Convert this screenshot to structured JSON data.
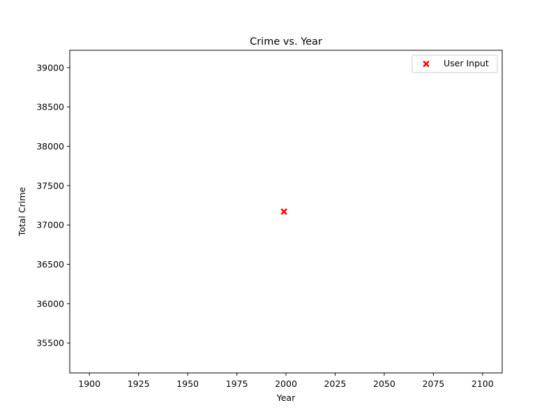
{
  "chart_data": {
    "type": "scatter",
    "title": "Crime vs. Year",
    "xlabel": "Year",
    "ylabel": "Total Crime",
    "xlim": [
      1890,
      2110
    ],
    "ylim": [
      35120,
      39220
    ],
    "xticks": [
      1900,
      1925,
      1950,
      1975,
      2000,
      2025,
      2050,
      2075,
      2100
    ],
    "xtick_labels": [
      "1900",
      "1925",
      "1950",
      "1975",
      "2000",
      "2025",
      "2050",
      "2075",
      "2100"
    ],
    "yticks": [
      35500,
      36000,
      36500,
      37000,
      37500,
      38000,
      38500,
      39000
    ],
    "ytick_labels": [
      "35500",
      "36000",
      "36500",
      "37000",
      "37500",
      "38000",
      "38500",
      "39000"
    ],
    "grid": false,
    "legend_position": "upper right",
    "series": [
      {
        "name": "User Input",
        "marker": "X",
        "color": "#ff0000",
        "points": [
          {
            "x": 1999,
            "y": 37170
          }
        ]
      }
    ]
  }
}
